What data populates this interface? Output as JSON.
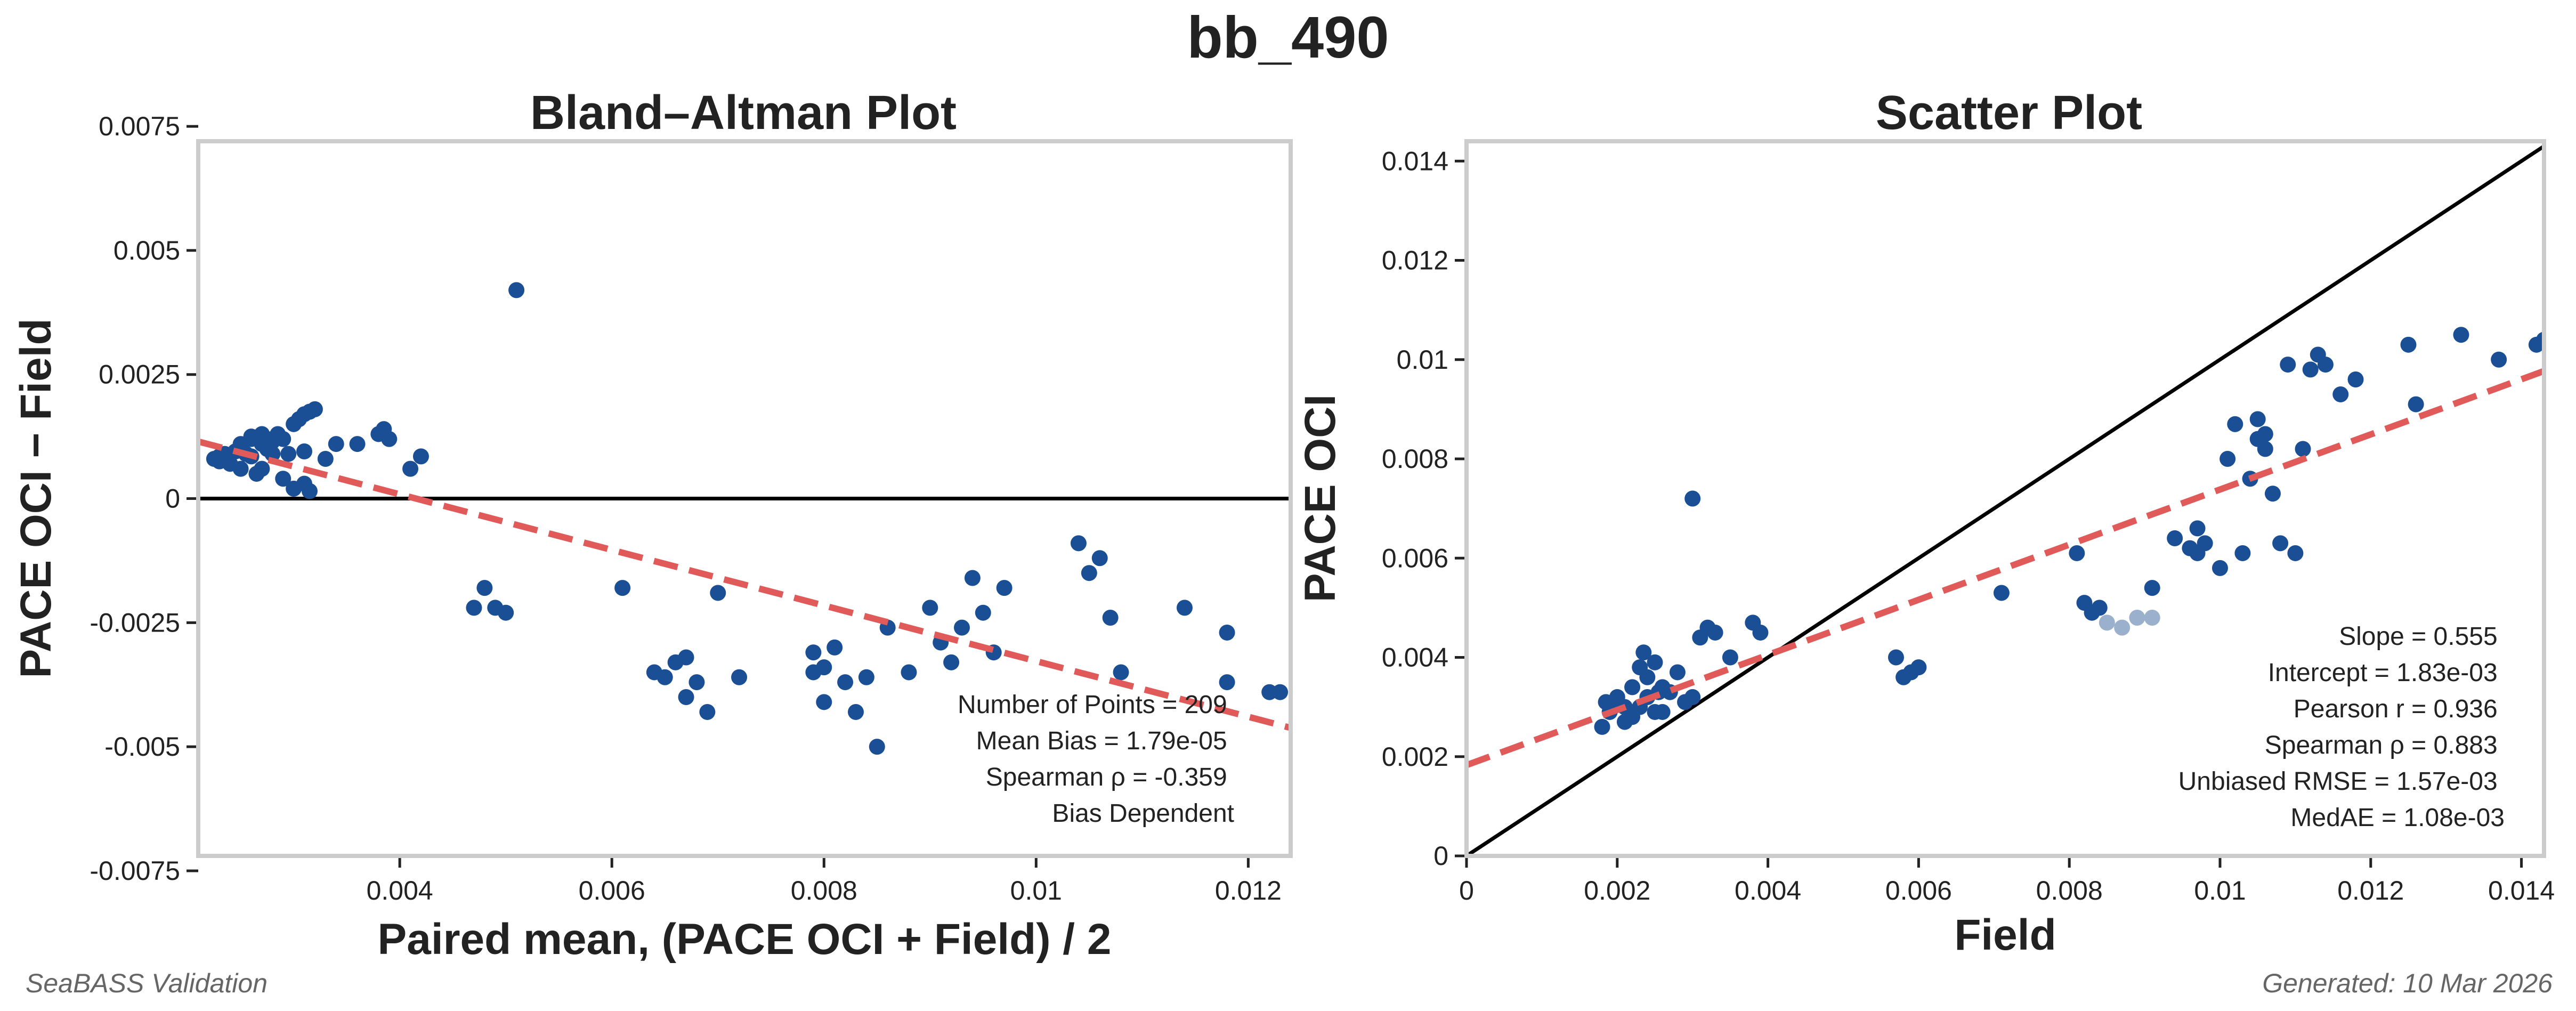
{
  "suptitle": "bb_490",
  "footer_left": "SeaBASS Validation",
  "footer_right": "Generated: 10 Mar 2026",
  "colors": {
    "point": "#1a4f96",
    "point_faded": "#9ab0cc",
    "fit": "#e05a5a",
    "reference": "#000000",
    "frame": "#cccccc"
  },
  "chart_data": [
    {
      "type": "scatter",
      "title": "Bland–Altman Plot",
      "xlabel": "Paired mean, (PACE OCI + Field) / 2",
      "ylabel": "PACE OCI − Field",
      "xlim": [
        0.0021,
        0.0124
      ],
      "ylim": [
        -0.0072,
        0.0072
      ],
      "xticks": [
        0.004,
        0.006,
        0.008,
        0.01,
        0.012
      ],
      "xtick_labels": [
        "0.004",
        "0.006",
        "0.008",
        "0.01",
        "0.012"
      ],
      "yticks": [
        -0.0075,
        -0.005,
        -0.0025,
        0,
        0.0025,
        0.005,
        0.0075
      ],
      "ytick_labels": [
        "-0.0075",
        "-0.005",
        "-0.0025",
        "0",
        "0.0025",
        "0.005",
        "0.0075"
      ],
      "grid": false,
      "zero_line": 0,
      "fit_line": {
        "x": [
          0.0021,
          0.0124
        ],
        "y": [
          0.00115,
          -0.00462
        ],
        "style": "dashed"
      },
      "stats_text": [
        "Number of Points = 209",
        "Mean Bias = 1.79e-05",
        "Spearman ρ = -0.359",
        "Bias Dependent"
      ],
      "points": [
        [
          0.00225,
          0.0008
        ],
        [
          0.0023,
          0.00075
        ],
        [
          0.00235,
          0.0009
        ],
        [
          0.0024,
          0.0007
        ],
        [
          0.00245,
          0.00095
        ],
        [
          0.0025,
          0.0011
        ],
        [
          0.00255,
          0.0009
        ],
        [
          0.0026,
          0.0012
        ],
        [
          0.00265,
          0.0005
        ],
        [
          0.0027,
          0.0006
        ],
        [
          0.00275,
          0.001
        ],
        [
          0.0028,
          0.00115
        ],
        [
          0.00285,
          0.0013
        ],
        [
          0.0029,
          0.0004
        ],
        [
          0.00295,
          0.0009
        ],
        [
          0.003,
          0.0015
        ],
        [
          0.00305,
          0.0016
        ],
        [
          0.0031,
          0.0017
        ],
        [
          0.00315,
          0.00175
        ],
        [
          0.0032,
          0.0018
        ],
        [
          0.0026,
          0.00085
        ],
        [
          0.0027,
          0.0011
        ],
        [
          0.0028,
          0.0009
        ],
        [
          0.0029,
          0.0012
        ],
        [
          0.0031,
          0.00095
        ],
        [
          0.0023,
          0.00085
        ],
        [
          0.0025,
          0.0006
        ],
        [
          0.0026,
          0.00125
        ],
        [
          0.0027,
          0.0013
        ],
        [
          0.0028,
          0.0012
        ],
        [
          0.003,
          0.0002
        ],
        [
          0.0031,
          0.0003
        ],
        [
          0.00315,
          0.00015
        ],
        [
          0.0033,
          0.0008
        ],
        [
          0.0034,
          0.0011
        ],
        [
          0.0036,
          0.0011
        ],
        [
          0.0038,
          0.0013
        ],
        [
          0.00385,
          0.0014
        ],
        [
          0.0039,
          0.0012
        ],
        [
          0.0041,
          0.0006
        ],
        [
          0.0042,
          0.00085
        ],
        [
          0.0051,
          0.0042
        ],
        [
          0.0047,
          -0.0022
        ],
        [
          0.0048,
          -0.0018
        ],
        [
          0.0049,
          -0.0022
        ],
        [
          0.005,
          -0.0023
        ],
        [
          0.0061,
          -0.0018
        ],
        [
          0.0064,
          -0.0035
        ],
        [
          0.0065,
          -0.0036
        ],
        [
          0.0066,
          -0.0033
        ],
        [
          0.0067,
          -0.0032
        ],
        [
          0.0067,
          -0.004
        ],
        [
          0.0068,
          -0.0037
        ],
        [
          0.0069,
          -0.0043
        ],
        [
          0.007,
          -0.0019
        ],
        [
          0.0072,
          -0.0036
        ],
        [
          0.0079,
          -0.0031
        ],
        [
          0.008,
          -0.0034
        ],
        [
          0.0081,
          -0.003
        ],
        [
          0.0082,
          -0.0037
        ],
        [
          0.0083,
          -0.0043
        ],
        [
          0.0084,
          -0.0036
        ],
        [
          0.0085,
          -0.005
        ],
        [
          0.0086,
          -0.0026
        ],
        [
          0.0088,
          -0.0035
        ],
        [
          0.009,
          -0.0022
        ],
        [
          0.0091,
          -0.0029
        ],
        [
          0.0093,
          -0.0026
        ],
        [
          0.0094,
          -0.0016
        ],
        [
          0.0095,
          -0.0023
        ],
        [
          0.0097,
          -0.0018
        ],
        [
          0.0104,
          -0.0009
        ],
        [
          0.0105,
          -0.0015
        ],
        [
          0.0106,
          -0.0012
        ],
        [
          0.0107,
          -0.0024
        ],
        [
          0.0108,
          -0.0035
        ],
        [
          0.0114,
          -0.0022
        ],
        [
          0.0118,
          -0.0027
        ],
        [
          0.0118,
          -0.0037
        ],
        [
          0.0122,
          -0.0039
        ],
        [
          0.0123,
          -0.0039
        ],
        [
          0.0079,
          -0.0035
        ],
        [
          0.0092,
          -0.0033
        ],
        [
          0.0096,
          -0.0031
        ],
        [
          0.008,
          -0.0041
        ]
      ]
    },
    {
      "type": "scatter",
      "title": "Scatter Plot",
      "xlabel": "Field",
      "ylabel": "PACE OCI",
      "xlim": [
        0,
        0.0143
      ],
      "ylim": [
        0,
        0.0144
      ],
      "xticks": [
        0,
        0.002,
        0.004,
        0.006,
        0.008,
        0.01,
        0.012,
        0.014
      ],
      "xtick_labels": [
        "0",
        "0.002",
        "0.004",
        "0.006",
        "0.008",
        "0.01",
        "0.012",
        "0.014"
      ],
      "yticks": [
        0,
        0.002,
        0.004,
        0.006,
        0.008,
        0.01,
        0.012,
        0.014
      ],
      "ytick_labels": [
        "0",
        "0.002",
        "0.004",
        "0.006",
        "0.008",
        "0.01",
        "0.012",
        "0.014"
      ],
      "grid": false,
      "reference_line": "1:1",
      "fit_line": {
        "x": [
          0,
          0.0143
        ],
        "y": [
          0.00183,
          0.00977
        ],
        "style": "dashed"
      },
      "stats_text": [
        "Slope = 0.555",
        "Intercept = 1.83e-03",
        "Pearson r = 0.936",
        "Spearman ρ = 0.883",
        "Unbiased RMSE = 1.57e-03",
        "MedAE = 1.08e-03"
      ],
      "points": [
        [
          0.0018,
          0.0026
        ],
        [
          0.0019,
          0.0029
        ],
        [
          0.00185,
          0.0031
        ],
        [
          0.002,
          0.0032
        ],
        [
          0.0021,
          0.003
        ],
        [
          0.0022,
          0.0034
        ],
        [
          0.0023,
          0.0038
        ],
        [
          0.00235,
          0.0041
        ],
        [
          0.0024,
          0.0036
        ],
        [
          0.0025,
          0.0039
        ],
        [
          0.00255,
          0.0033
        ],
        [
          0.0026,
          0.0029
        ],
        [
          0.0022,
          0.0028
        ],
        [
          0.0021,
          0.0027
        ],
        [
          0.002,
          0.0031
        ],
        [
          0.0023,
          0.003
        ],
        [
          0.0024,
          0.0032
        ],
        [
          0.0025,
          0.0029
        ],
        [
          0.0026,
          0.0034
        ],
        [
          0.0027,
          0.0033
        ],
        [
          0.0028,
          0.0037
        ],
        [
          0.0029,
          0.0031
        ],
        [
          0.003,
          0.0032
        ],
        [
          0.0031,
          0.0044
        ],
        [
          0.0032,
          0.0046
        ],
        [
          0.0033,
          0.0045
        ],
        [
          0.0035,
          0.004
        ],
        [
          0.0038,
          0.0047
        ],
        [
          0.0039,
          0.0045
        ],
        [
          0.003,
          0.0072
        ],
        [
          0.0057,
          0.004
        ],
        [
          0.0058,
          0.0036
        ],
        [
          0.0059,
          0.0037
        ],
        [
          0.006,
          0.0038
        ],
        [
          0.0071,
          0.0053
        ],
        [
          0.0081,
          0.0061
        ],
        [
          0.0082,
          0.0051
        ],
        [
          0.0083,
          0.0049
        ],
        [
          0.0084,
          0.005
        ],
        [
          0.0091,
          0.0054
        ],
        [
          0.0094,
          0.0064
        ],
        [
          0.0096,
          0.0062
        ],
        [
          0.0097,
          0.0066
        ],
        [
          0.0098,
          0.0063
        ],
        [
          0.01,
          0.0058
        ],
        [
          0.0101,
          0.008
        ],
        [
          0.0102,
          0.0087
        ],
        [
          0.0103,
          0.0061
        ],
        [
          0.0104,
          0.0076
        ],
        [
          0.0105,
          0.0084
        ],
        [
          0.0106,
          0.0082
        ],
        [
          0.0107,
          0.0073
        ],
        [
          0.0108,
          0.0063
        ],
        [
          0.0109,
          0.0099
        ],
        [
          0.011,
          0.0061
        ],
        [
          0.0111,
          0.0082
        ],
        [
          0.0112,
          0.0098
        ],
        [
          0.0113,
          0.0101
        ],
        [
          0.0114,
          0.0099
        ],
        [
          0.0116,
          0.0093
        ],
        [
          0.0118,
          0.0096
        ],
        [
          0.0125,
          0.0103
        ],
        [
          0.0126,
          0.0091
        ],
        [
          0.0132,
          0.0105
        ],
        [
          0.0137,
          0.01
        ],
        [
          0.0142,
          0.0103
        ],
        [
          0.0143,
          0.0104
        ],
        [
          0.0105,
          0.0088
        ],
        [
          0.0106,
          0.0085
        ],
        [
          0.0097,
          0.0061
        ]
      ],
      "faded_points": [
        [
          0.0085,
          0.0047
        ],
        [
          0.0087,
          0.0046
        ],
        [
          0.0089,
          0.0048
        ],
        [
          0.0091,
          0.0048
        ]
      ]
    }
  ]
}
